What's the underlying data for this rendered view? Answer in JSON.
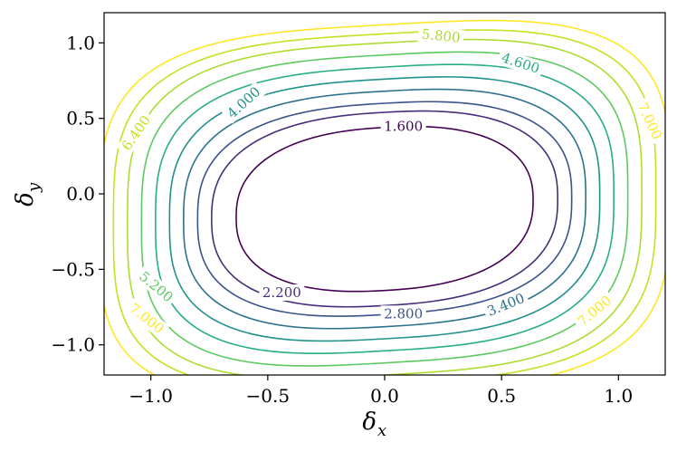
{
  "chart_data": {
    "type": "contour",
    "xlabel": "δ",
    "xlabel_sub": "x",
    "ylabel": "δ",
    "ylabel_sub": "y",
    "xlim": [
      -1.2,
      1.2
    ],
    "ylim": [
      -1.2,
      1.2
    ],
    "xticks": [
      {
        "value": -1.0,
        "label": "−1.0"
      },
      {
        "value": -0.5,
        "label": "−0.5"
      },
      {
        "value": 0.0,
        "label": "0.0"
      },
      {
        "value": 0.5,
        "label": "0.5"
      },
      {
        "value": 1.0,
        "label": "1.0"
      }
    ],
    "yticks": [
      {
        "value": -1.0,
        "label": "−1.0"
      },
      {
        "value": -0.5,
        "label": "−0.5"
      },
      {
        "value": 0.0,
        "label": "0.0"
      },
      {
        "value": 0.5,
        "label": "0.5"
      },
      {
        "value": 1.0,
        "label": "1.0"
      }
    ],
    "grid": false,
    "colormap": "viridis",
    "center": [
      0.0,
      -0.1
    ],
    "levels": [
      {
        "value": 1.6,
        "color": "#440154",
        "a": 0.635,
        "b": 0.54
      },
      {
        "value": 2.2,
        "color": "#472d7b",
        "a": 0.74,
        "b": 0.64
      },
      {
        "value": 2.8,
        "color": "#3b528b",
        "a": 0.8,
        "b": 0.7
      },
      {
        "value": 3.4,
        "color": "#2c728e",
        "a": 0.86,
        "b": 0.78
      },
      {
        "value": 4.0,
        "color": "#21918c",
        "a": 0.92,
        "b": 0.86
      },
      {
        "value": 4.6,
        "color": "#28ae80",
        "a": 0.98,
        "b": 0.94
      },
      {
        "value": 5.2,
        "color": "#5ec962",
        "a": 1.04,
        "b": 1.02
      },
      {
        "value": 5.8,
        "color": "#addc30",
        "a": 1.1,
        "b": 1.1
      },
      {
        "value": 6.4,
        "color": "#c8e020",
        "a": 1.16,
        "b": 1.16
      },
      {
        "value": 7.0,
        "color": "#fde725",
        "a": 1.22,
        "b": 1.22
      }
    ],
    "contour_labels": [
      {
        "text": "1.600",
        "x": 0.08,
        "y": 0.44,
        "color": "#440154",
        "rot": 0
      },
      {
        "text": "2.200",
        "x": -0.44,
        "y": -0.66,
        "color": "#472d7b",
        "rot": 0
      },
      {
        "text": "2.800",
        "x": 0.08,
        "y": -0.8,
        "color": "#3b528b",
        "rot": 0
      },
      {
        "text": "3.400",
        "x": 0.52,
        "y": -0.74,
        "color": "#2c728e",
        "rot": -22
      },
      {
        "text": "4.000",
        "x": -0.6,
        "y": 0.6,
        "color": "#21918c",
        "rot": -42
      },
      {
        "text": "4.600",
        "x": 0.58,
        "y": 0.86,
        "color": "#28ae80",
        "rot": 18
      },
      {
        "text": "5.200",
        "x": -0.98,
        "y": -0.62,
        "color": "#5ec962",
        "rot": 40
      },
      {
        "text": "5.800",
        "x": 0.24,
        "y": 1.04,
        "color": "#addc30",
        "rot": 6
      },
      {
        "text": "6.400",
        "x": -1.06,
        "y": 0.4,
        "color": "#c8e020",
        "rot": -55
      },
      {
        "text": "7.000",
        "x": 1.13,
        "y": 0.48,
        "color": "#fde725",
        "rot": 65
      },
      {
        "text": "7.000",
        "x": -1.02,
        "y": -0.83,
        "color": "#fde725",
        "rot": 38
      },
      {
        "text": "7.000",
        "x": 0.9,
        "y": -0.78,
        "color": "#fde725",
        "rot": -40
      }
    ]
  }
}
